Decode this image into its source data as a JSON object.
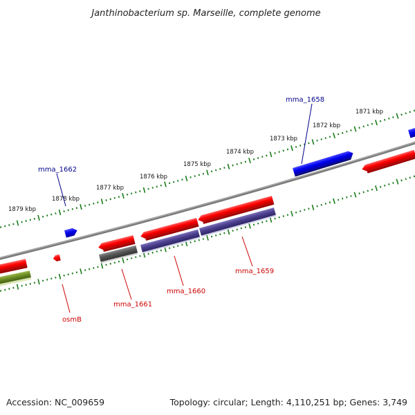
{
  "title": "Janthinobacterium sp. Marseille, complete genome",
  "ticks_outer": [
    "1871 kbp",
    "1872 kbp",
    "1873 kbp",
    "1874 kbp",
    "1875 kbp",
    "1876 kbp",
    "1877 kbp",
    "1878 kbp",
    "1879 kbp"
  ],
  "gene_labels": {
    "mma_1658": "mma_1658",
    "mma_1662": "mma_1662",
    "mma_1659": "mma_1659",
    "mma_1660": "mma_1660",
    "mma_1661": "mma_1661",
    "osmB": "osmB"
  },
  "colors": {
    "forward_gene": "#ff0000",
    "reverse_gene": "#0000ee",
    "backbone": "#808080",
    "tick": "#1a7a1a",
    "cds_feature": "#4b3f8f",
    "dark_feature": "#555555",
    "olive_feature": "#6b8e23",
    "blue_label": "#00008b",
    "red_label": "#cc0000"
  },
  "footer": {
    "accession": "Accession: NC_009659",
    "stats": "Topology: circular; Length: 4,110,251 bp; Genes: 3,749"
  }
}
